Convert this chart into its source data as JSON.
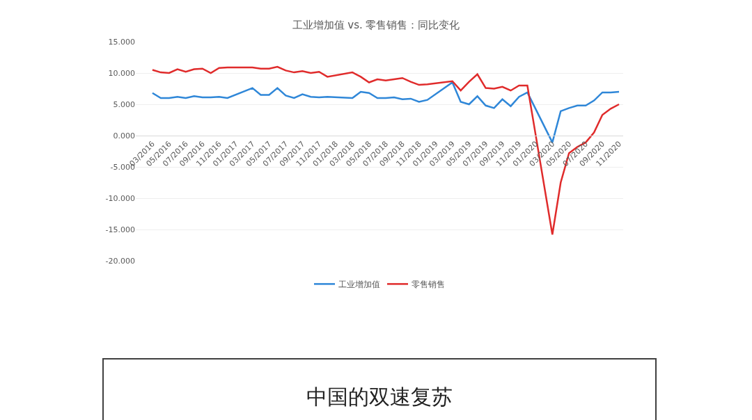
{
  "chart_data": {
    "type": "line",
    "title": "工业增加值 vs. 零售销售：同比变化",
    "categories": [
      "03/2016",
      null,
      "05/2016",
      null,
      "07/2016",
      null,
      "09/2016",
      null,
      "11/2016",
      null,
      "01/2017",
      null,
      "03/2017",
      null,
      "05/2017",
      null,
      "07/2017",
      null,
      "09/2017",
      null,
      "11/2017",
      null,
      "01/2018",
      null,
      "03/2018",
      null,
      "05/2018",
      null,
      "07/2018",
      null,
      "09/2018",
      null,
      "11/2018",
      null,
      "01/2019",
      null,
      "03/2019",
      null,
      "05/2019",
      null,
      "07/2019",
      null,
      "09/2019",
      null,
      "11/2019",
      null,
      "01/2020",
      null,
      "03/2020",
      null,
      "05/2020",
      null,
      "07/2020",
      null,
      "09/2020",
      null,
      "11/2020"
    ],
    "series": [
      {
        "name": "工业增加值",
        "color": "#2f87d8",
        "values": [
          6.8,
          6.0,
          6.0,
          6.2,
          6.0,
          6.3,
          6.1,
          6.1,
          6.2,
          6.0,
          null,
          null,
          7.6,
          6.5,
          6.5,
          7.6,
          6.4,
          6.0,
          6.6,
          6.2,
          6.1,
          6.2,
          null,
          null,
          6.0,
          7.0,
          6.8,
          6.0,
          6.0,
          6.1,
          5.8,
          5.9,
          5.4,
          5.7,
          null,
          null,
          8.5,
          5.4,
          5.0,
          6.3,
          4.8,
          4.4,
          5.8,
          4.7,
          6.2,
          6.9,
          null,
          null,
          -1.1,
          3.9,
          4.4,
          4.8,
          4.8,
          5.6,
          6.9,
          6.9,
          7.0
        ]
      },
      {
        "name": "零售销售",
        "color": "#e02b2b",
        "values": [
          10.5,
          10.1,
          10.0,
          10.6,
          10.2,
          10.6,
          10.7,
          10.0,
          10.8,
          10.9,
          null,
          null,
          10.9,
          10.7,
          10.7,
          11.0,
          10.4,
          10.1,
          10.3,
          10.0,
          10.2,
          9.4,
          null,
          null,
          10.1,
          9.4,
          8.5,
          9.0,
          8.8,
          9.0,
          9.2,
          8.6,
          8.1,
          8.2,
          null,
          null,
          8.7,
          7.2,
          8.6,
          9.8,
          7.6,
          7.5,
          7.8,
          7.2,
          8.0,
          8.0,
          null,
          null,
          -15.8,
          -7.5,
          -2.8,
          -1.8,
          -1.1,
          0.5,
          3.3,
          4.3,
          5.0
        ]
      }
    ],
    "ylim": [
      -20,
      15
    ],
    "yticks": [
      {
        "value": -20,
        "label": "-20.000"
      },
      {
        "value": -15,
        "label": "-15.000"
      },
      {
        "value": -10,
        "label": "-10.000"
      },
      {
        "value": -5,
        "label": "-5.000"
      },
      {
        "value": 0,
        "label": "0.000"
      },
      {
        "value": 5,
        "label": "5.000"
      },
      {
        "value": 10,
        "label": "10.000"
      },
      {
        "value": 15,
        "label": "15.000"
      }
    ],
    "grid": "y",
    "legend": "bottom",
    "marker": "none",
    "line_style": "solid",
    "annotations": [
      "中国的双速复苏"
    ]
  }
}
